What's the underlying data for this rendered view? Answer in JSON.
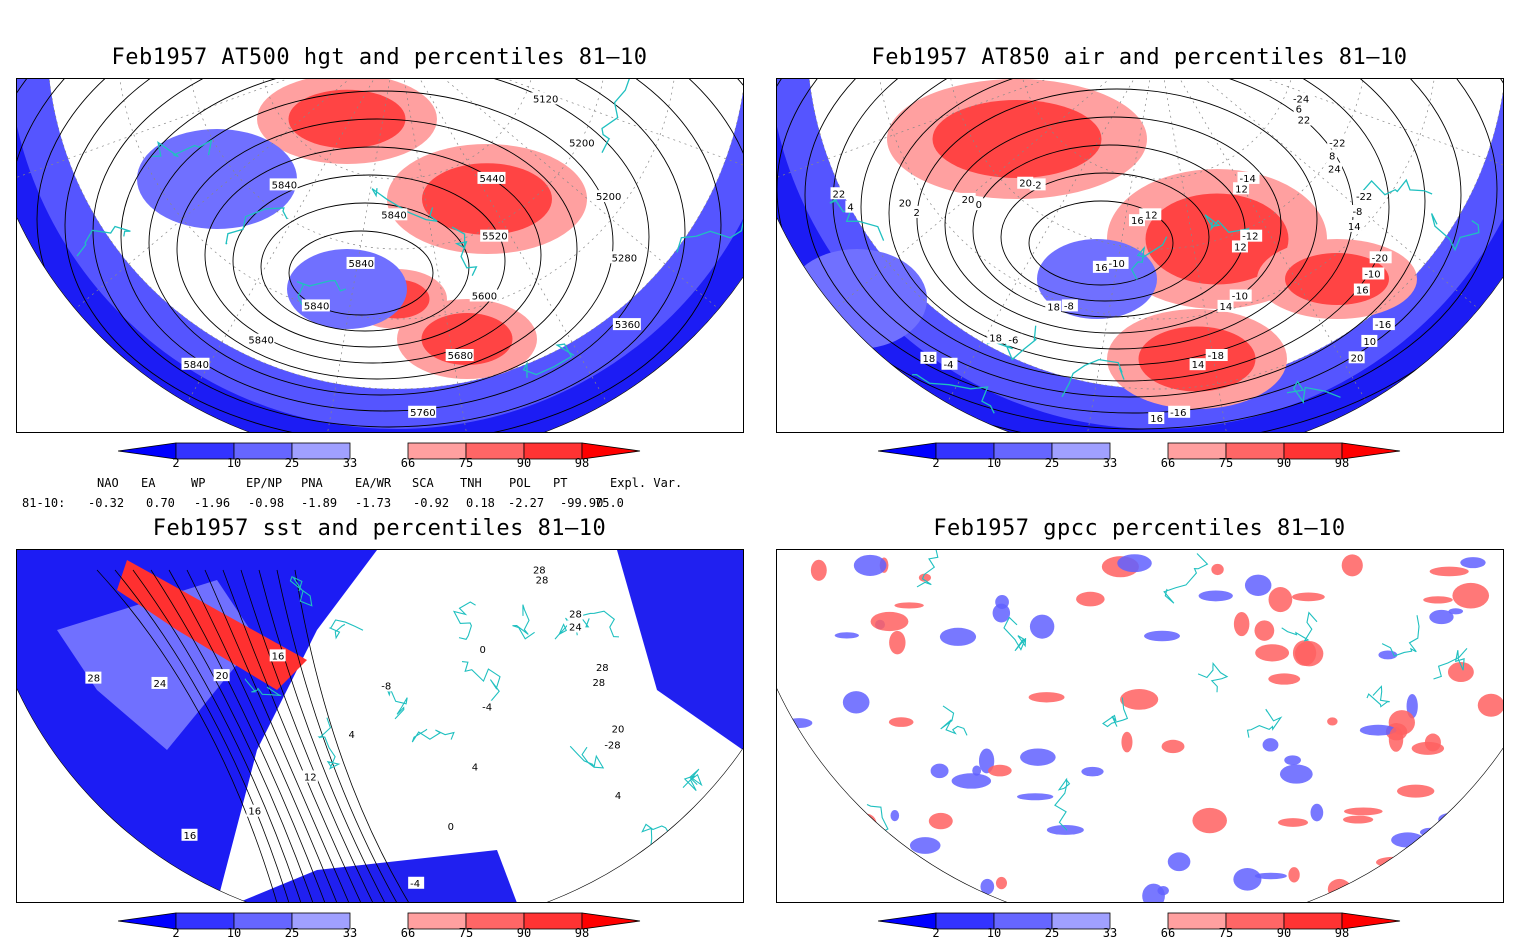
{
  "panels": [
    {
      "id": "hgt",
      "title": "Feb1957 AT500 hgt and percentiles 81–10",
      "contour_labels": [
        "5120",
        "5200",
        "5200",
        "5280",
        "5360",
        "5440",
        "5520",
        "5600",
        "5680",
        "5760",
        "5840",
        "5840",
        "5840",
        "5840",
        "5840",
        "5840"
      ]
    },
    {
      "id": "air",
      "title": "Feb1957 AT850 air and percentiles 81–10",
      "contour_labels": [
        "-24",
        "-22",
        "-22",
        "-20",
        "-16",
        "-14",
        "-12",
        "-10",
        "-18",
        "-16",
        "-12",
        "-10",
        "-8",
        "-6",
        "-4",
        "-2",
        "0",
        "2",
        "4",
        "6",
        "8",
        "-8",
        "-10",
        "10",
        "12",
        "12",
        "14",
        "14",
        "16",
        "16",
        "16",
        "18",
        "18",
        "18",
        "20",
        "20",
        "20",
        "22",
        "22",
        "24",
        "14",
        "16",
        "20"
      ]
    },
    {
      "id": "sst",
      "title": "Feb1957 sst and percentiles 81–10",
      "contour_labels": [
        "28",
        "28",
        "28",
        "20",
        "4",
        "0",
        "-4",
        "4",
        "0",
        "-4",
        "-8",
        "4",
        "12",
        "16",
        "16",
        "16",
        "20",
        "24",
        "28",
        "28",
        "24",
        "28",
        "-28"
      ]
    },
    {
      "id": "gpcc",
      "title": "Feb1957 gpcc percentiles 81–10",
      "contour_labels": []
    }
  ],
  "colorbar": {
    "labels": [
      "2",
      "10",
      "25",
      "33",
      "66",
      "75",
      "90",
      "98"
    ],
    "colors": [
      "#0000ff",
      "#3333ff",
      "#6666ff",
      "#a0a0ff",
      "#ffa0a0",
      "#ff6666",
      "#ff3333",
      "#ff0000"
    ],
    "neutral": "#ffffff"
  },
  "indices": {
    "header": [
      "NAO",
      "EA",
      "WP",
      "EP/NP",
      "PNA",
      "EA/WR",
      "SCA",
      "TNH",
      "POL",
      "PT",
      "Expl. Var."
    ],
    "row_label": "81-10:",
    "values": [
      "-0.32",
      "0.70",
      "-1.96",
      "-0.98",
      "-1.89",
      "-1.73",
      "-0.92",
      "0.18",
      "-2.27",
      "-99.90",
      "75.0"
    ]
  },
  "colors": {
    "coast": "#20c0c0",
    "contour": "#000000",
    "blue": "#2020f0",
    "red": "#f02020"
  }
}
